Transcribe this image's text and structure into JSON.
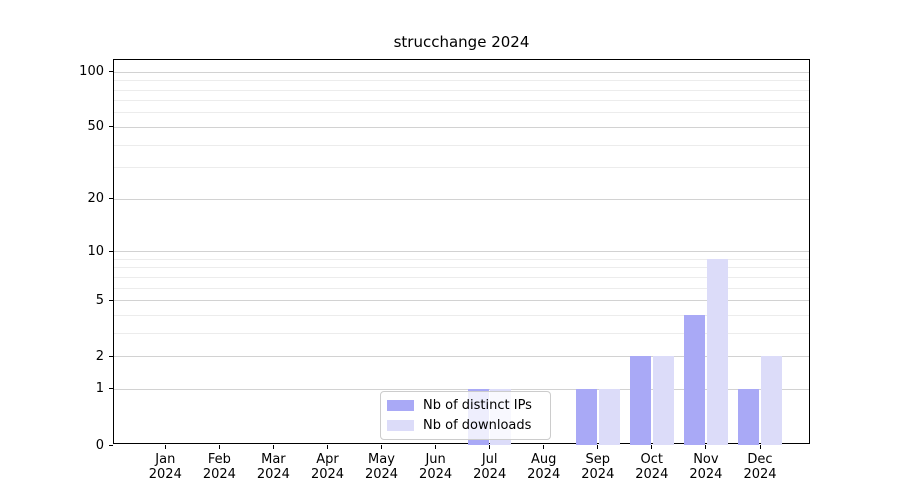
{
  "chart_data": {
    "type": "bar",
    "title": "strucchange 2024",
    "categories": [
      "Jan 2024",
      "Feb 2024",
      "Mar 2024",
      "Apr 2024",
      "May 2024",
      "Jun 2024",
      "Jul 2024",
      "Aug 2024",
      "Sep 2024",
      "Oct 2024",
      "Nov 2024",
      "Dec 2024"
    ],
    "series": [
      {
        "name": "Nb of distinct IPs",
        "color": "#a9a9f6",
        "values": [
          0,
          0,
          0,
          0,
          0,
          0,
          1,
          0,
          1,
          2,
          4,
          1
        ]
      },
      {
        "name": "Nb of downloads",
        "color": "#dcdcf9",
        "values": [
          0,
          0,
          0,
          0,
          0,
          0,
          1,
          0,
          1,
          2,
          9,
          2
        ]
      }
    ],
    "xlabel": "",
    "ylabel": "",
    "y_axis": {
      "scale": "log1p",
      "ylim": [
        0,
        116
      ],
      "ticks": [
        0,
        1,
        2,
        5,
        10,
        20,
        50,
        100
      ],
      "minor_ticks": [
        3,
        4,
        6,
        7,
        8,
        9,
        30,
        40,
        60,
        70,
        80,
        90
      ]
    },
    "grid": "on",
    "legend_position": "bottom-center"
  }
}
